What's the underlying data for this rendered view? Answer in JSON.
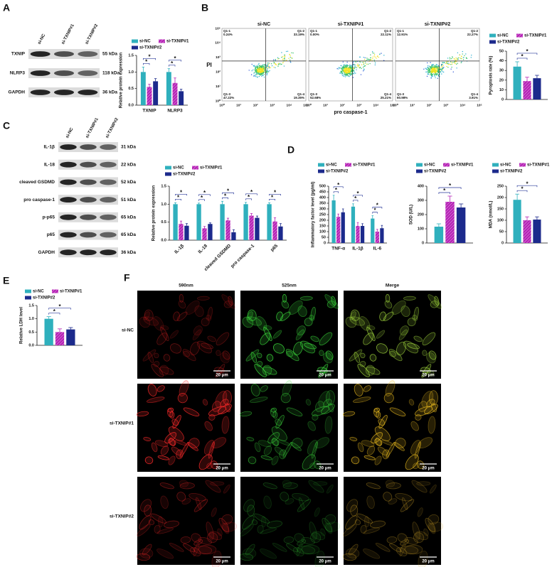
{
  "figure": {
    "panel_labels": [
      "A",
      "B",
      "C",
      "D",
      "E",
      "F"
    ],
    "blots": [
      {
        "lanes": [
          "si-NC",
          "si-TXNIP#1",
          "si-TXNIP#2"
        ],
        "rows": [
          {
            "name": "TXNIP",
            "size": "55 kDa"
          },
          {
            "name": "NLRP3",
            "size": "118 kDa"
          },
          {
            "name": "GAPDH",
            "size": "36 kDa"
          }
        ]
      },
      {
        "lanes": [
          "si-NC",
          "si-TXNIP#1",
          "si-TXNIP#2"
        ],
        "rows": [
          {
            "name": "IL-1β",
            "size": "31 kDa"
          },
          {
            "name": "IL-18",
            "size": "22 kDa"
          },
          {
            "name": "cleaved GSDMD",
            "size": "52 kDa"
          },
          {
            "name": "pro caspase-1",
            "size": "51 kDa"
          },
          {
            "name": "p-p65",
            "size": "65 kDa"
          },
          {
            "name": "p65",
            "size": "65 kDa"
          },
          {
            "name": "GAPDH",
            "size": "36 kDa"
          }
        ]
      }
    ],
    "flow": {
      "ylabel": "PI",
      "xlabel": "pro caspase-1",
      "tick_labels": [
        "10⁰",
        "10¹",
        "10²",
        "10³",
        "10⁴",
        "10⁵"
      ],
      "panels": [
        {
          "title": "si-NC",
          "quadrants": [
            {
              "name": "Q1-1",
              "value": "0.24%"
            },
            {
              "name": "Q1-2",
              "value": "33.19%"
            },
            {
              "name": "Q1-3",
              "value": "47.22%"
            },
            {
              "name": "Q1-4",
              "value": "19.35%"
            }
          ]
        },
        {
          "title": "si-TXNIP#1",
          "quadrants": [
            {
              "name": "Q1-1",
              "value": "0.00%"
            },
            {
              "name": "Q1-2",
              "value": "22.11%"
            },
            {
              "name": "Q1-3",
              "value": "52.68%"
            },
            {
              "name": "Q1-4",
              "value": "25.21%"
            }
          ]
        },
        {
          "title": "si-TXNIP#2",
          "quadrants": [
            {
              "name": "Q1-1",
              "value": "12.91%"
            },
            {
              "name": "Q1-2",
              "value": "22.27%"
            },
            {
              "name": "Q1-3",
              "value": "60.98%"
            },
            {
              "name": "Q1-4",
              "value": "3.91%"
            }
          ]
        }
      ]
    },
    "microscopy": {
      "columns": [
        "590nm",
        "525nm",
        "Merge"
      ],
      "rows": [
        "si-NC",
        "si-TXNIP#1",
        "si-TXNIP#2"
      ],
      "scale_bar": "20 μm"
    }
  },
  "chart_data": [
    {
      "type": "bar",
      "ylabel": "Relative protein expression",
      "categories": [
        "TXNIP",
        "NLRP3"
      ],
      "annotation": "*",
      "ylim": [
        0,
        1.5
      ],
      "yticks": [
        {
          "value": 0,
          "label": "0.0"
        },
        {
          "value": 0.5,
          "label": "0.5"
        },
        {
          "value": 1,
          "label": "1.0"
        },
        {
          "value": 1.5,
          "label": "1.5"
        }
      ],
      "series": [
        {
          "name": "si-NC",
          "color": "#2fb0bd",
          "values": [
            1.0,
            1.0
          ],
          "errors": [
            0.15,
            0.1
          ]
        },
        {
          "name": "si-TXNIP#1",
          "color": "#b523b5",
          "pattern": "hatch",
          "values": [
            0.55,
            0.67
          ],
          "errors": [
            0.08,
            0.15
          ]
        },
        {
          "name": "si-TXNIP#2",
          "color": "#1c2a8c",
          "values": [
            0.72,
            0.42
          ],
          "errors": [
            0.08,
            0.06
          ]
        }
      ]
    },
    {
      "type": "bar",
      "ylabel": "Pyroptosis rate (%)",
      "categories": [
        null
      ],
      "annotation": "*",
      "ylim": [
        0,
        50
      ],
      "yticks": [
        0,
        10,
        20,
        30,
        40,
        50
      ],
      "series": [
        {
          "name": "si-NC",
          "color": "#2fb0bd",
          "values": [
            34
          ],
          "errors": [
            5
          ]
        },
        {
          "name": "si-TXNIP#1",
          "color": "#b523b5",
          "pattern": "hatch",
          "values": [
            19
          ],
          "errors": [
            4
          ]
        },
        {
          "name": "si-TXNIP#2",
          "color": "#1c2a8c",
          "values": [
            22
          ],
          "errors": [
            3
          ]
        }
      ]
    },
    {
      "type": "bar",
      "ylabel": "Relative protein expression",
      "categories": [
        "IL-1β",
        "IL-18",
        "cleaved GSDMD",
        "pro caspase-1",
        "p65"
      ],
      "annotation": "*",
      "ylim": [
        0,
        1.5
      ],
      "yticks": [
        {
          "value": 0,
          "label": "0.0"
        },
        {
          "value": 0.5,
          "label": "0.5"
        },
        {
          "value": 1,
          "label": "1.0"
        },
        {
          "value": 1.5,
          "label": "1.5"
        }
      ],
      "series": [
        {
          "name": "si-NC",
          "color": "#2fb0bd",
          "values": [
            1.0,
            1.0,
            1.0,
            1.0,
            1.0
          ],
          "errors": [
            0.04,
            0.03,
            0.08,
            0.05,
            0.04
          ]
        },
        {
          "name": "si-TXNIP#1",
          "color": "#b523b5",
          "pattern": "hatch",
          "values": [
            0.45,
            0.33,
            0.55,
            0.68,
            0.52
          ],
          "errors": [
            0.08,
            0.05,
            0.06,
            0.06,
            0.1
          ]
        },
        {
          "name": "si-TXNIP#2",
          "color": "#1c2a8c",
          "values": [
            0.4,
            0.45,
            0.22,
            0.62,
            0.38
          ],
          "errors": [
            0.06,
            0.03,
            0.07,
            0.05,
            0.08
          ]
        }
      ]
    },
    {
      "type": "bar",
      "ylabel": "Inflammatory factor level (pg/ml)",
      "categories": [
        "TNF-α",
        "IL-1β",
        "IL-6"
      ],
      "annotation": "*",
      "ylim": [
        0,
        500
      ],
      "yticks": [
        0,
        50,
        100,
        150,
        200,
        250,
        300,
        350,
        400,
        450,
        500
      ],
      "series": [
        {
          "name": "si-NC",
          "color": "#2fb0bd",
          "values": [
            375,
            320,
            215
          ],
          "errors": [
            45,
            25,
            25
          ]
        },
        {
          "name": "si-TXNIP#1",
          "color": "#b523b5",
          "pattern": "hatch",
          "values": [
            230,
            150,
            100
          ],
          "errors": [
            25,
            30,
            20
          ]
        },
        {
          "name": "si-TXNIP#2",
          "color": "#1c2a8c",
          "values": [
            270,
            150,
            130
          ],
          "errors": [
            30,
            20,
            25
          ]
        }
      ]
    },
    {
      "type": "bar",
      "ylabel": "SOD (U/L)",
      "categories": [
        null
      ],
      "annotation": "*",
      "ylim": [
        0,
        400
      ],
      "yticks": [
        0,
        100,
        200,
        300,
        400
      ],
      "series": [
        {
          "name": "si-NC",
          "color": "#2fb0bd",
          "values": [
            115
          ],
          "errors": [
            20
          ]
        },
        {
          "name": "si-TXNIP#1",
          "color": "#b523b5",
          "pattern": "hatch",
          "values": [
            290
          ],
          "errors": [
            40
          ]
        },
        {
          "name": "si-TXNIP#2",
          "color": "#1c2a8c",
          "values": [
            250
          ],
          "errors": [
            25
          ]
        }
      ]
    },
    {
      "type": "bar",
      "ylabel": "MDA (nmol/L)",
      "categories": [
        null
      ],
      "annotation": "*",
      "ylim": [
        0,
        250
      ],
      "yticks": [
        0,
        50,
        100,
        150,
        200,
        250
      ],
      "series": [
        {
          "name": "si-NC",
          "color": "#2fb0bd",
          "values": [
            190
          ],
          "errors": [
            25
          ]
        },
        {
          "name": "si-TXNIP#1",
          "color": "#b523b5",
          "pattern": "hatch",
          "values": [
            100
          ],
          "errors": [
            15
          ]
        },
        {
          "name": "si-TXNIP#2",
          "color": "#1c2a8c",
          "values": [
            103
          ],
          "errors": [
            12
          ]
        }
      ]
    },
    {
      "type": "bar",
      "ylabel": "Relative LDH level",
      "categories": [
        null
      ],
      "annotation": "*",
      "ylim": [
        0,
        1.5
      ],
      "yticks": [
        {
          "value": 0,
          "label": "0.0"
        },
        {
          "value": 0.5,
          "label": "0.5"
        },
        {
          "value": 1,
          "label": "1.0"
        },
        {
          "value": 1.5,
          "label": "1.5"
        }
      ],
      "series": [
        {
          "name": "si-NC",
          "color": "#2fb0bd",
          "values": [
            1.0
          ],
          "errors": [
            0.08
          ]
        },
        {
          "name": "si-TXNIP#1",
          "color": "#b523b5",
          "pattern": "hatch",
          "values": [
            0.5
          ],
          "errors": [
            0.12
          ]
        },
        {
          "name": "si-TXNIP#2",
          "color": "#1c2a8c",
          "values": [
            0.6
          ],
          "errors": [
            0.07
          ]
        }
      ]
    }
  ]
}
